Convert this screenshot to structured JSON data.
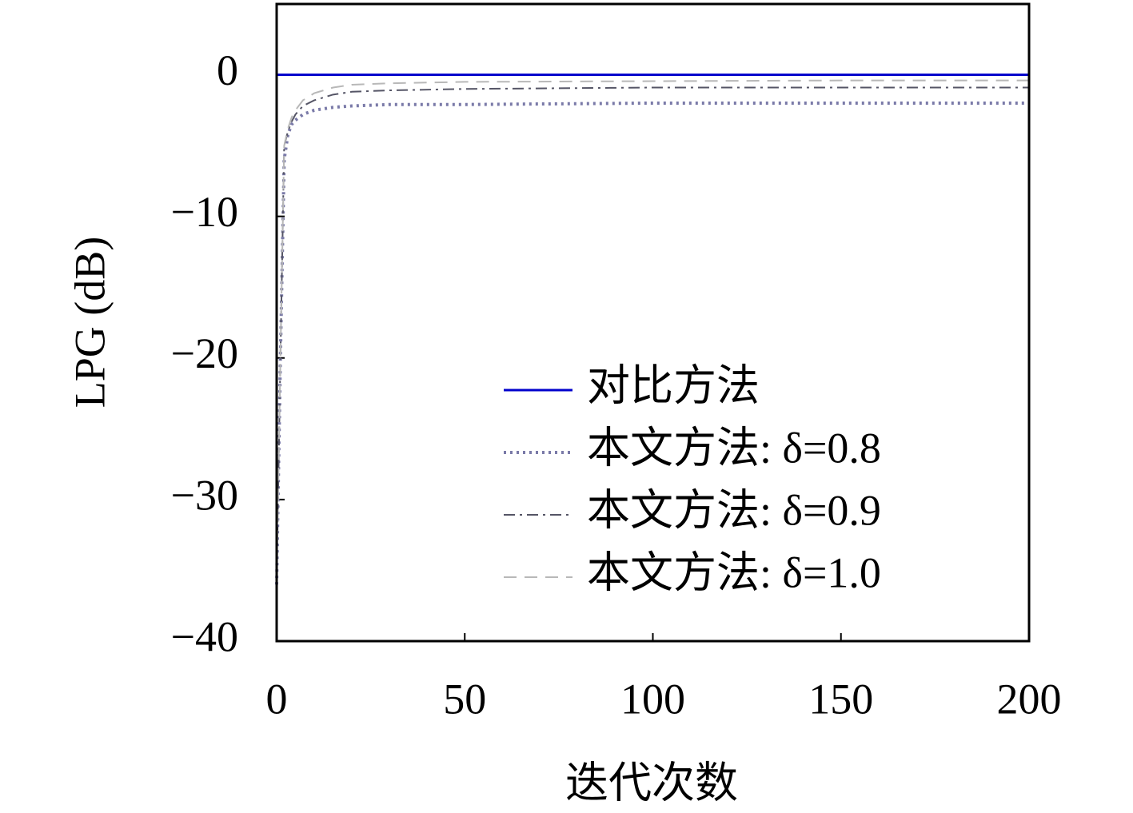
{
  "chart_data": {
    "type": "line",
    "x_label": "迭代次数",
    "y_label": "LPG (dB)",
    "x": [
      0,
      1,
      2,
      3,
      4,
      5,
      7,
      10,
      15,
      20,
      30,
      50,
      100,
      150,
      200
    ],
    "series": [
      {
        "name": "对比方法",
        "color": "#0000cc",
        "dash": "solid",
        "values": [
          0,
          0,
          0,
          0,
          0,
          0,
          0,
          0,
          0,
          0,
          0,
          0,
          0,
          0,
          0
        ]
      },
      {
        "name": "本文方法: δ=0.8",
        "color": "#7a7aa8",
        "dash": "dotted",
        "values": [
          -36,
          -20,
          -6,
          -4.2,
          -3.5,
          -3.2,
          -2.8,
          -2.5,
          -2.3,
          -2.2,
          -2.1,
          -2.1,
          -2.0,
          -2.0,
          -2.0
        ]
      },
      {
        "name": "本文方法: δ=0.9",
        "color": "#555566",
        "dash": "dashdot",
        "values": [
          -36,
          -20,
          -5,
          -4,
          -3.3,
          -2.8,
          -2.2,
          -1.8,
          -1.4,
          -1.2,
          -1.1,
          -1.0,
          -0.9,
          -0.9,
          -0.9
        ]
      },
      {
        "name": "本文方法: δ=1.0",
        "color": "#b8b8b8",
        "dash": "dashed",
        "values": [
          -36,
          -20,
          -5,
          -3.8,
          -3,
          -2.5,
          -1.8,
          -1.3,
          -0.9,
          -0.7,
          -0.6,
          -0.5,
          -0.45,
          -0.4,
          -0.4
        ]
      }
    ],
    "xlim": [
      0,
      200
    ],
    "xticks": [
      0,
      50,
      100,
      150,
      200
    ],
    "ylim": [
      -40,
      5
    ],
    "yticks": [
      {
        "value": -40,
        "label": "−40"
      },
      {
        "value": -30,
        "label": "−30"
      },
      {
        "value": -20,
        "label": "−20"
      },
      {
        "value": -10,
        "label": "−10"
      },
      0
    ],
    "grid": false,
    "legend": "lower right"
  }
}
